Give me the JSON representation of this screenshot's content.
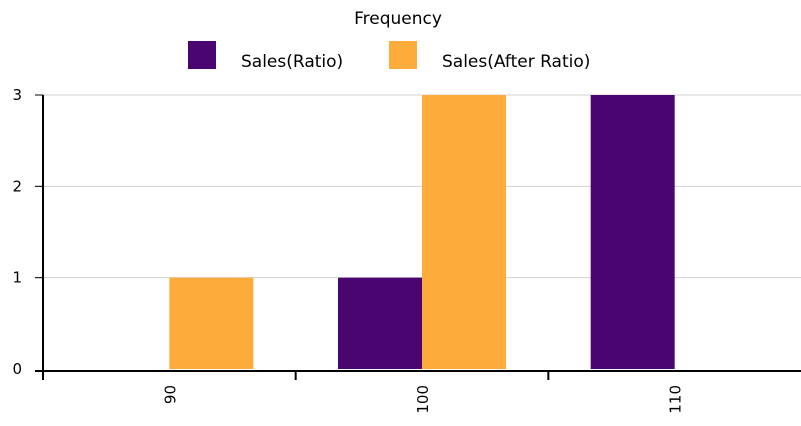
{
  "chart_data": {
    "type": "bar",
    "title": "Frequency",
    "xlabel": "",
    "ylabel": "",
    "categories": [
      "90",
      "100",
      "110"
    ],
    "series": [
      {
        "name": "Sales(Ratio)",
        "values": [
          0,
          1,
          3
        ],
        "color": "#4b0571"
      },
      {
        "name": "Sales(After Ratio)",
        "values": [
          1,
          3,
          0
        ],
        "color": "#fdab3b"
      }
    ],
    "ylim": [
      0,
      3
    ],
    "yticks": [
      "0",
      "1",
      "2",
      "3"
    ],
    "grid": true,
    "legend_position": "top-center"
  }
}
